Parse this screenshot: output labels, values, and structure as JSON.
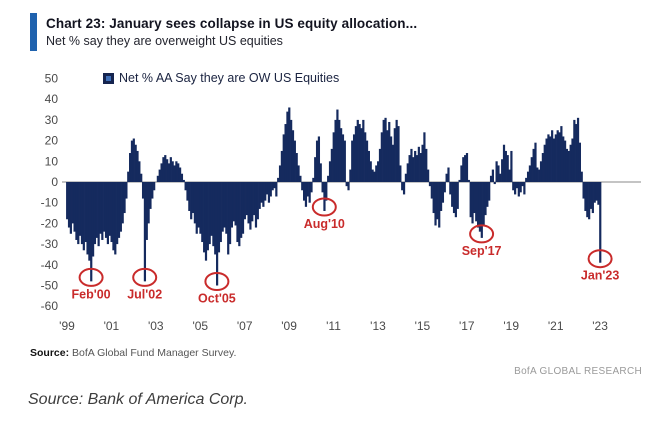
{
  "header": {
    "title": "Chart 23: January sees collapse in US equity allocation...",
    "subtitle": "Net % say they are overweight US equities"
  },
  "footer": {
    "source_label": "Source:",
    "source_text": " BofA Global Fund Manager Survey.",
    "brand": "BofA GLOBAL RESEARCH"
  },
  "caption": "Source: Bank of America Corp.",
  "colors": {
    "bar": "#152a5e",
    "accent_blue": "#1f62ae",
    "annotation_red": "#c92b2b",
    "axis_gray": "#8a8a8a"
  },
  "chart_data": {
    "type": "bar",
    "legend": "Net % AA Say they are OW US Equities",
    "x_start": "1999-01",
    "x_interval": "monthly",
    "ylim": [
      -60,
      50
    ],
    "yticks": [
      50,
      40,
      30,
      20,
      10,
      0,
      -10,
      -20,
      -30,
      -40,
      -50,
      -60
    ],
    "xticks": [
      "'99",
      "'01",
      "'03",
      "'05",
      "'07",
      "'09",
      "'11",
      "'13",
      "'15",
      "'17",
      "'19",
      "'21",
      "'23"
    ],
    "grid": false,
    "legend_position": "top-left",
    "values": [
      -18,
      -22,
      -25,
      -20,
      -24,
      -28,
      -30,
      -26,
      -30,
      -33,
      -29,
      -35,
      -38,
      -48,
      -36,
      -30,
      -27,
      -31,
      -25,
      -28,
      -24,
      -27,
      -30,
      -26,
      -29,
      -33,
      -35,
      -30,
      -27,
      -24,
      -20,
      -15,
      -8,
      5,
      14,
      20,
      21,
      18,
      15,
      10,
      4,
      -8,
      -48,
      -28,
      -20,
      -13,
      -8,
      -4,
      0,
      3,
      6,
      9,
      12,
      13,
      11,
      9,
      12,
      10,
      8,
      10,
      9,
      7,
      4,
      1,
      -4,
      -9,
      -14,
      -18,
      -15,
      -20,
      -25,
      -22,
      -25,
      -29,
      -34,
      -38,
      -33,
      -30,
      -26,
      -31,
      -35,
      -50,
      -34,
      -29,
      -24,
      -22,
      -25,
      -35,
      -30,
      -22,
      -19,
      -21,
      -29,
      -31,
      -27,
      -25,
      -18,
      -16,
      -20,
      -23,
      -19,
      -16,
      -22,
      -18,
      -13,
      -10,
      -12,
      -9,
      -6,
      -10,
      -7,
      -4,
      -3,
      -7,
      2,
      8,
      15,
      23,
      28,
      34,
      36,
      30,
      25,
      20,
      14,
      8,
      3,
      -4,
      -9,
      -12,
      -7,
      -10,
      -5,
      2,
      12,
      20,
      22,
      9,
      -5,
      -14,
      -9,
      3,
      10,
      16,
      24,
      30,
      35,
      30,
      26,
      23,
      20,
      -2,
      -4,
      6,
      20,
      23,
      27,
      30,
      28,
      26,
      30,
      24,
      20,
      15,
      10,
      6,
      5,
      8,
      10,
      16,
      24,
      30,
      31,
      25,
      29,
      22,
      18,
      26,
      30,
      27,
      8,
      -4,
      -6,
      4,
      9,
      13,
      16,
      12,
      15,
      13,
      17,
      14,
      18,
      24,
      16,
      6,
      -2,
      -8,
      -15,
      -21,
      -18,
      -22,
      -14,
      -10,
      -5,
      4,
      7,
      -6,
      -12,
      -15,
      -17,
      -13,
      1,
      8,
      12,
      13,
      14,
      1,
      -17,
      -20,
      -15,
      -19,
      -22,
      -24,
      -27,
      -21,
      -16,
      -12,
      -9,
      3,
      6,
      -1,
      10,
      8,
      4,
      11,
      18,
      15,
      13,
      6,
      15,
      -4,
      -6,
      -3,
      -7,
      -5,
      -2,
      -6,
      2,
      5,
      8,
      12,
      16,
      19,
      7,
      6,
      10,
      14,
      18,
      21,
      23,
      22,
      25,
      21,
      23,
      25,
      24,
      27,
      22,
      20,
      16,
      15,
      18,
      21,
      30,
      28,
      31,
      19,
      5,
      -8,
      -14,
      -17,
      -18,
      -13,
      -15,
      -10,
      -9,
      -11,
      -39
    ],
    "annotations": [
      {
        "label": "Feb'00",
        "x": "2000-02",
        "value": -48
      },
      {
        "label": "Jul'02",
        "x": "2002-07",
        "value": -48
      },
      {
        "label": "Oct'05",
        "x": "2005-10",
        "value": -50
      },
      {
        "label": "Aug'10",
        "x": "2010-08",
        "value": -14
      },
      {
        "label": "Sep'17",
        "x": "2017-09",
        "value": -27
      },
      {
        "label": "Jan'23",
        "x": "2023-01",
        "value": -39
      }
    ]
  }
}
